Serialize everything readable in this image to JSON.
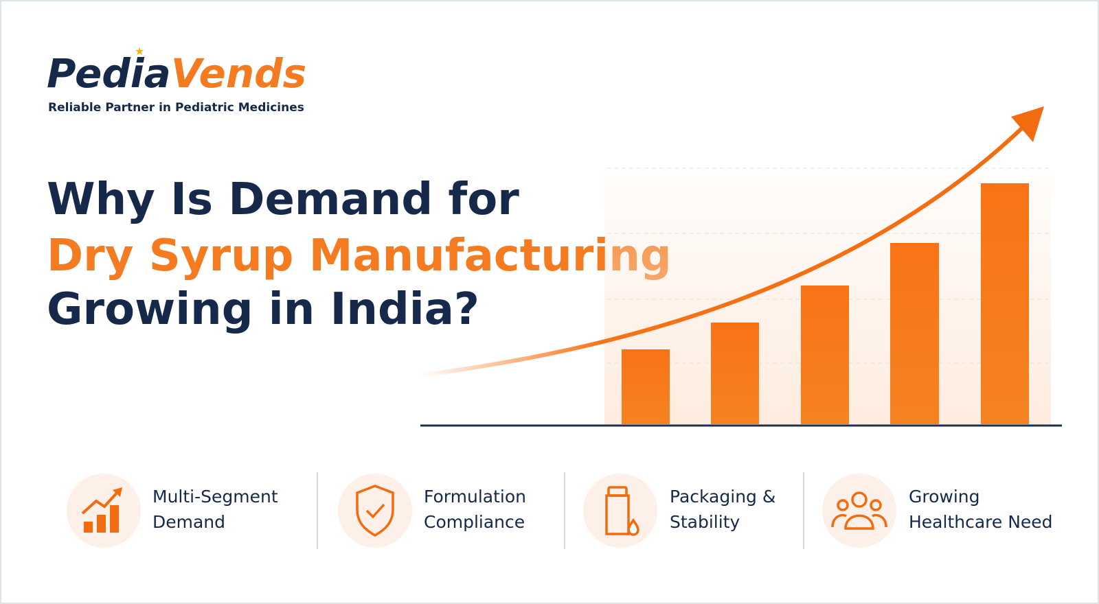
{
  "brand": {
    "name_dark": "Pedia",
    "name_orange": "Vends",
    "tagline": "Reliable Partner in Pediatric Medicines"
  },
  "headline": {
    "line1": "Why Is Demand for",
    "line2": "Dry Syrup Manufacturing",
    "line3": "Growing in India?"
  },
  "features": [
    {
      "lines": [
        "Multi-Segment",
        "Demand"
      ]
    },
    {
      "lines": [
        "Formulation",
        "Compliance"
      ]
    },
    {
      "lines": [
        "Packaging &",
        "Stability"
      ]
    },
    {
      "lines": [
        "Growing",
        "Healthcare Need"
      ]
    }
  ]
}
